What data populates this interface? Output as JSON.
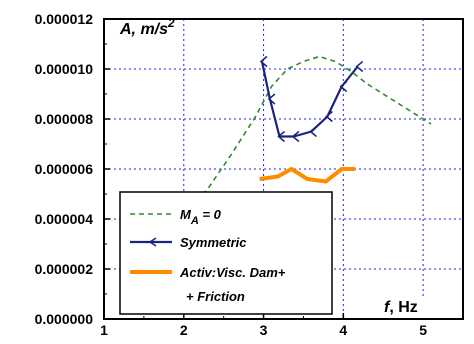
{
  "chart_data": {
    "type": "line",
    "title": "",
    "ylabel": {
      "base": "A, m/s",
      "sup": "2"
    },
    "xlabel": {
      "var": "f",
      "unit": ", Hz"
    },
    "xlim": [
      1,
      5.5
    ],
    "ylim": [
      0,
      1.2e-05
    ],
    "x_ticks": [
      1,
      2,
      3,
      4,
      5
    ],
    "x_tick_labels": [
      "1",
      "2",
      "3",
      "4",
      "5"
    ],
    "y_ticks": [
      0,
      2e-06,
      4e-06,
      6e-06,
      8e-06,
      1e-05,
      1.2e-05
    ],
    "y_tick_labels": [
      "0.000000",
      "0.000002",
      "0.000004",
      "0.000006",
      "0.000008",
      "0.000010",
      "0.000012"
    ],
    "grid": true,
    "legend_position": "bottom-left",
    "series": [
      {
        "name": "M_A = 0",
        "legend": {
          "main": "M",
          "sub": "A",
          "tail": " = 0"
        },
        "color": "#2e8b2e",
        "style": "dashed",
        "x": [
          2.0,
          2.3,
          2.6,
          2.9,
          3.1,
          3.3,
          3.5,
          3.7,
          3.9,
          4.1,
          4.3,
          4.6,
          5.1
        ],
        "y": [
          4.2e-06,
          5.2e-06,
          6.6e-06,
          8.1e-06,
          9.3e-06,
          1e-05,
          1.03e-05,
          1.05e-05,
          1.03e-05,
          9.9e-06,
          9.4e-06,
          8.8e-06,
          7.8e-06
        ]
      },
      {
        "name": "Symmetric",
        "color": "#1a237e",
        "style": "solid-arrow",
        "x": [
          2.98,
          3.08,
          3.2,
          3.38,
          3.6,
          3.8,
          3.98,
          4.18
        ],
        "y": [
          1.03e-05,
          8.8e-06,
          7.3e-06,
          7.3e-06,
          7.5e-06,
          8.1e-06,
          9.3e-06,
          1.01e-05
        ]
      },
      {
        "name": "Activ:Visc. Dam+ + Friction",
        "legend_lines": [
          "Activ:Visc. Dam+",
          "+ Friction"
        ],
        "color": "#ff8c00",
        "style": "solid-thick",
        "x": [
          2.95,
          3.18,
          3.35,
          3.55,
          3.78,
          3.98,
          4.15
        ],
        "y": [
          5.6e-06,
          5.7e-06,
          6e-06,
          5.6e-06,
          5.5e-06,
          6e-06,
          6e-06
        ]
      }
    ]
  }
}
